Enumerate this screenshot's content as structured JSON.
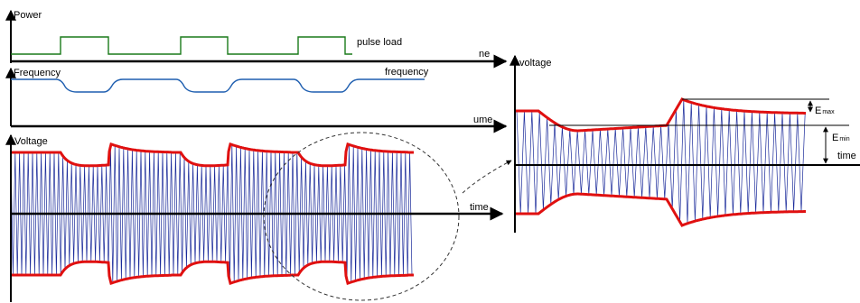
{
  "left_panel": {
    "power_axis_label": "Power",
    "pulse_load_label": "pulse load",
    "power_time_label": "ne",
    "frequency_axis_label": "Frequency",
    "frequency_curve_label": "frequency",
    "frequency_time_label": "ume",
    "voltage_axis_label": "Voltage",
    "voltage_time_label": "time"
  },
  "right_panel": {
    "voltage_axis_label": "voltage",
    "emax_label": "E",
    "emax_sub": "max",
    "emin_label": "E",
    "emin_sub": "min",
    "time_label": "time"
  },
  "colors": {
    "power_trace": "#1a7a1a",
    "frequency_trace": "#1f5fb0",
    "envelope": "#e01010",
    "carrier": "#1a2a9a",
    "axis": "#000000"
  }
}
